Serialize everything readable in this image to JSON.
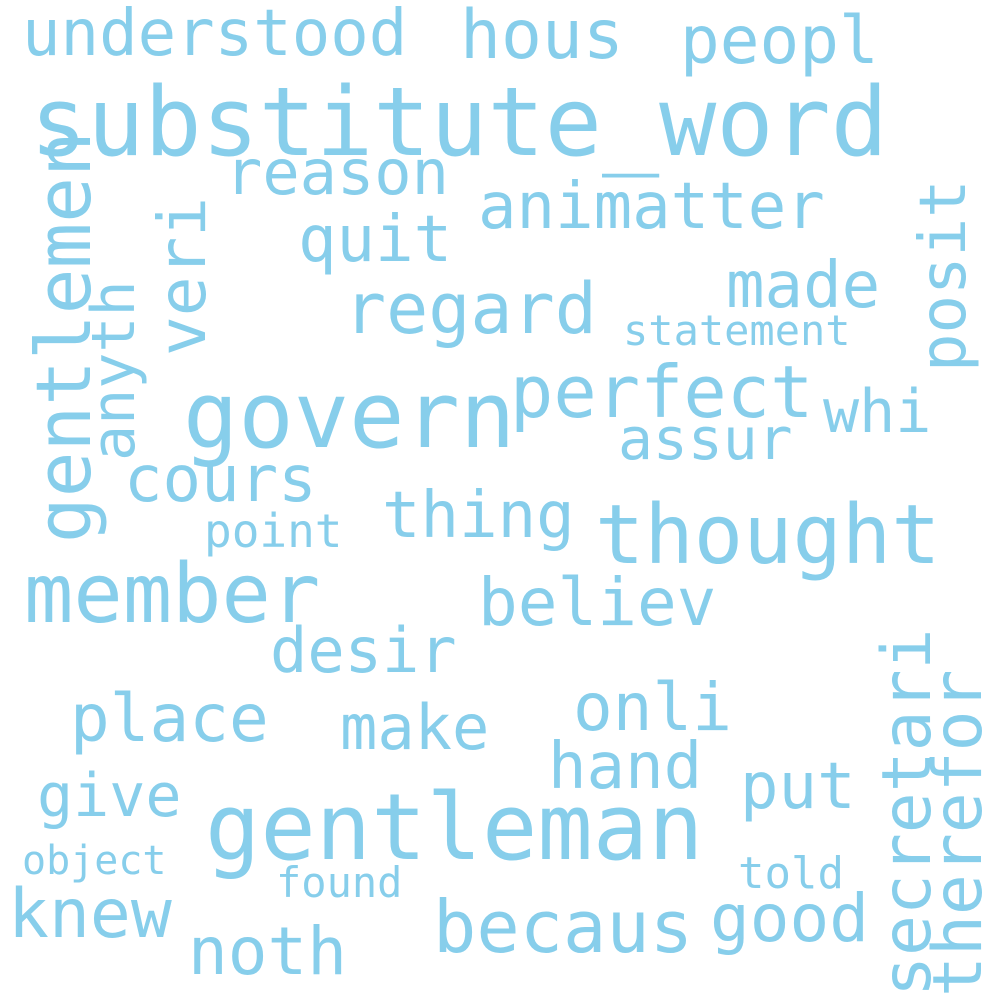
{
  "colors": {
    "word": "#87CEEB",
    "background": "#ffffff"
  },
  "words": [
    {
      "text": "substitute_word",
      "rotate": 0
    },
    {
      "text": "gentleman",
      "rotate": 0
    },
    {
      "text": "govern",
      "rotate": 0
    },
    {
      "text": "thought",
      "rotate": 0
    },
    {
      "text": "member",
      "rotate": 0
    },
    {
      "text": "becaus",
      "rotate": 0
    },
    {
      "text": "gentlemen",
      "rotate": -90
    },
    {
      "text": "regard",
      "rotate": 0
    },
    {
      "text": "perfect",
      "rotate": 0
    },
    {
      "text": "secretari",
      "rotate": -90
    },
    {
      "text": "therefor",
      "rotate": -90
    },
    {
      "text": "believ",
      "rotate": 0
    },
    {
      "text": "knew",
      "rotate": 0
    },
    {
      "text": "noth",
      "rotate": 0
    },
    {
      "text": "place",
      "rotate": 0
    },
    {
      "text": "good",
      "rotate": 0
    },
    {
      "text": "thing",
      "rotate": 0
    },
    {
      "text": "animatter",
      "rotate": 0
    },
    {
      "text": "understood",
      "rotate": 0
    },
    {
      "text": "hous",
      "rotate": 0
    },
    {
      "text": "peopl",
      "rotate": 0
    },
    {
      "text": "reason",
      "rotate": 0
    },
    {
      "text": "veri",
      "rotate": -90
    },
    {
      "text": "anyth",
      "rotate": -90
    },
    {
      "text": "quit",
      "rotate": 0
    },
    {
      "text": "made",
      "rotate": 0
    },
    {
      "text": "posit",
      "rotate": -90
    },
    {
      "text": "whi",
      "rotate": 0
    },
    {
      "text": "assur",
      "rotate": 0
    },
    {
      "text": "cours",
      "rotate": 0
    },
    {
      "text": "desir",
      "rotate": 0
    },
    {
      "text": "onli",
      "rotate": 0
    },
    {
      "text": "make",
      "rotate": 0
    },
    {
      "text": "hand",
      "rotate": 0
    },
    {
      "text": "put",
      "rotate": 0
    },
    {
      "text": "give",
      "rotate": 0
    },
    {
      "text": "statement",
      "rotate": 0
    },
    {
      "text": "point",
      "rotate": 0
    },
    {
      "text": "object",
      "rotate": 0
    },
    {
      "text": "found",
      "rotate": 0
    },
    {
      "text": "told",
      "rotate": 0
    }
  ]
}
